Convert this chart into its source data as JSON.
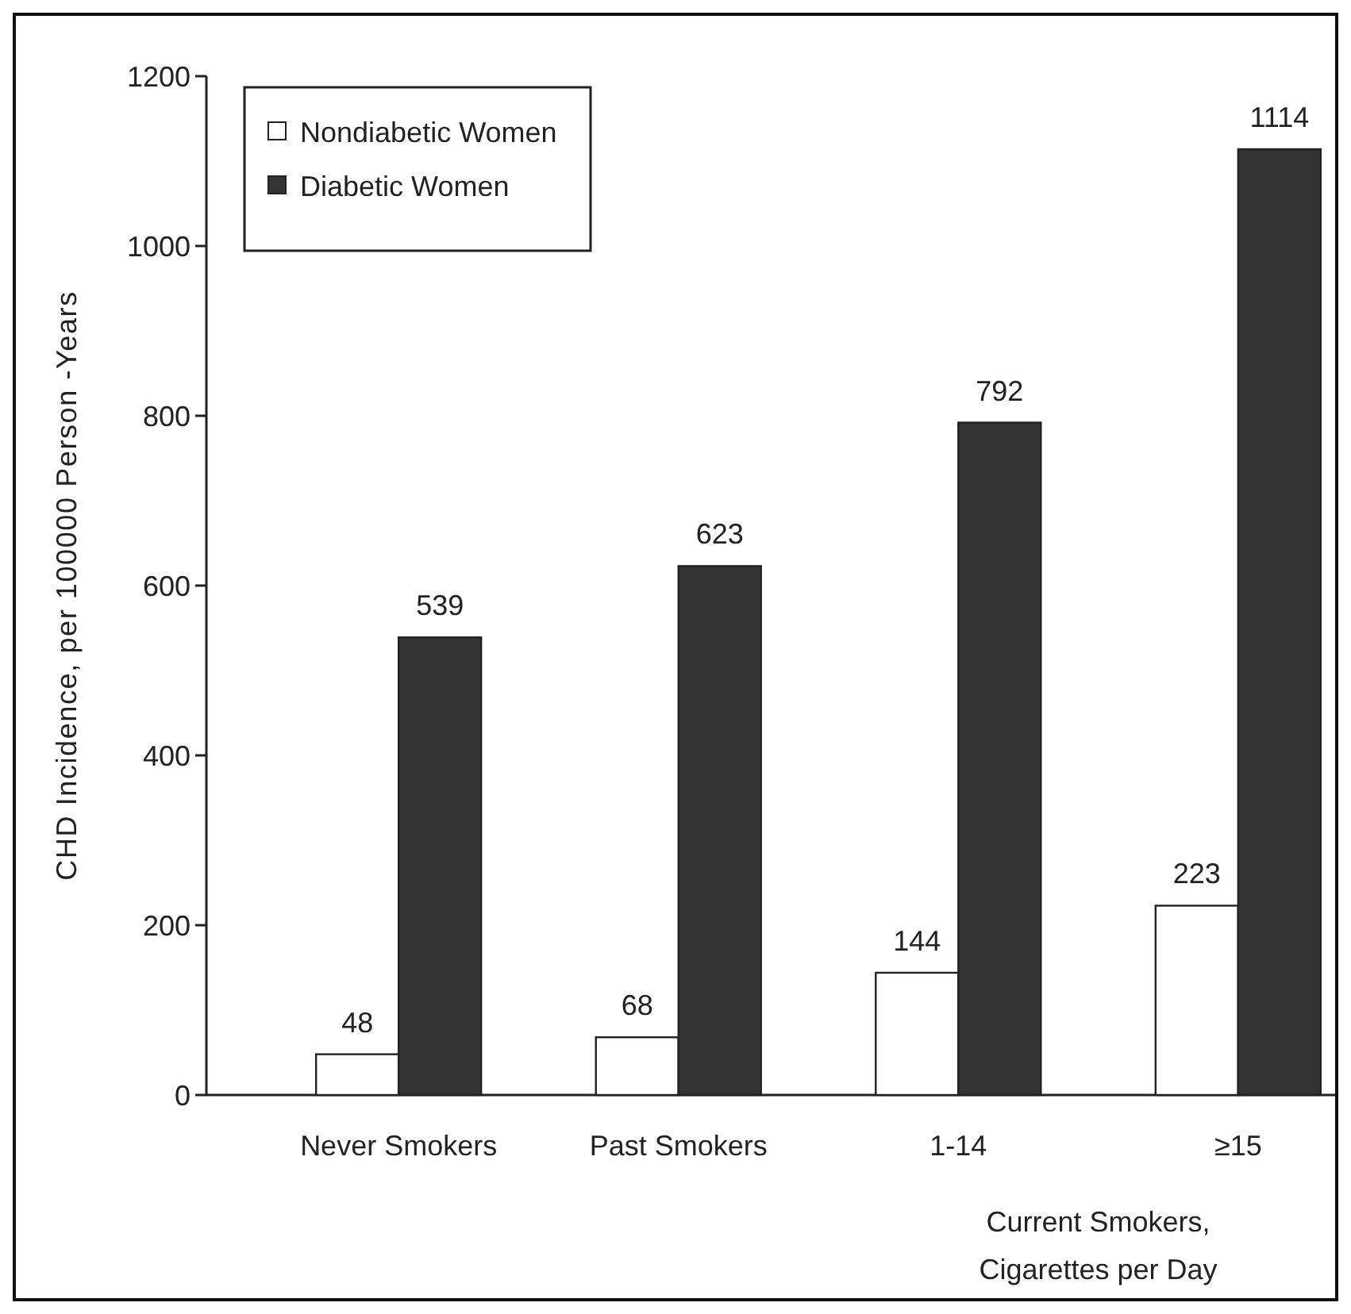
{
  "chart_data": {
    "type": "bar",
    "ylabel": "CHD Incidence, per 100000 Person -Years",
    "xlabel": "Current Smokers, Cigarettes per Day",
    "categories": [
      "Never Smokers",
      "Past Smokers",
      "1-14",
      "≥15"
    ],
    "series": [
      {
        "name": "Nondiabetic Women",
        "color": "#ffffff",
        "values": [
          48,
          68,
          144,
          223
        ]
      },
      {
        "name": "Diabetic Women",
        "color": "#333333",
        "values": [
          539,
          623,
          792,
          1114
        ]
      }
    ],
    "ylim": [
      0,
      1200
    ],
    "yticks": [
      0,
      200,
      400,
      600,
      800,
      1000,
      1200
    ],
    "data_labels": true,
    "legend": "top left",
    "grid": false
  }
}
